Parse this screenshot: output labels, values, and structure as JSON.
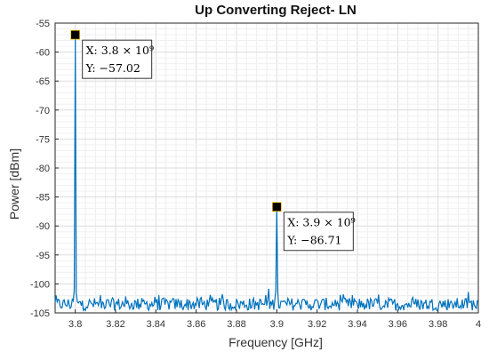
{
  "chart_data": {
    "type": "line",
    "title": "Up Converting Reject- LN",
    "xlabel": "Frequency [GHz]",
    "ylabel": "Power [dBm]",
    "xlim": [
      3.79,
      4.0
    ],
    "ylim": [
      -105,
      -55
    ],
    "xticks": [
      "3.8",
      "3.82",
      "3.84",
      "3.86",
      "3.88",
      "3.9",
      "3.92",
      "3.94",
      "3.96",
      "3.98",
      "4"
    ],
    "yticks": [
      "-55",
      "-60",
      "-65",
      "-70",
      "-75",
      "-80",
      "-85",
      "-90",
      "-95",
      "-100",
      "-105"
    ],
    "grid": true,
    "series_color": "#0072bd",
    "noise_floor": -103.5,
    "peaks": [
      {
        "x": 3.8,
        "y": -57.02
      },
      {
        "x": 3.9,
        "y": -86.71
      }
    ],
    "datatips": [
      {
        "x_text": "X: 3.8 × 10⁹",
        "y_text": "Y: −57.02"
      },
      {
        "x_text": "X: 3.9 × 10⁹",
        "y_text": "Y: −86.71"
      }
    ]
  }
}
